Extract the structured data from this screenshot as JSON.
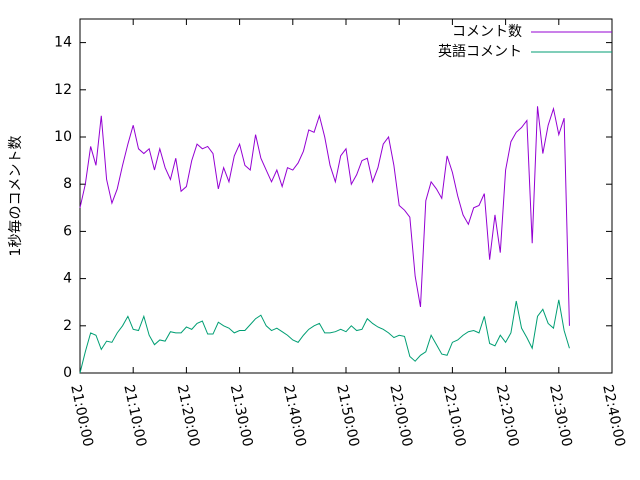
{
  "chart_data": {
    "type": "line",
    "y_label": "1秒毎のコメント数",
    "x": [
      "21:00:00",
      "21:01:00",
      "21:02:00",
      "21:03:00",
      "21:04:00",
      "21:05:00",
      "21:06:00",
      "21:07:00",
      "21:08:00",
      "21:09:00",
      "21:10:00",
      "21:11:00",
      "21:12:00",
      "21:13:00",
      "21:14:00",
      "21:15:00",
      "21:16:00",
      "21:17:00",
      "21:18:00",
      "21:19:00",
      "21:20:00",
      "21:21:00",
      "21:22:00",
      "21:23:00",
      "21:24:00",
      "21:25:00",
      "21:26:00",
      "21:27:00",
      "21:28:00",
      "21:29:00",
      "21:30:00",
      "21:31:00",
      "21:32:00",
      "21:33:00",
      "21:34:00",
      "21:35:00",
      "21:36:00",
      "21:37:00",
      "21:38:00",
      "21:39:00",
      "21:40:00",
      "21:41:00",
      "21:42:00",
      "21:43:00",
      "21:44:00",
      "21:45:00",
      "21:46:00",
      "21:47:00",
      "21:48:00",
      "21:49:00",
      "21:50:00",
      "21:51:00",
      "21:52:00",
      "21:53:00",
      "21:54:00",
      "21:55:00",
      "21:56:00",
      "21:57:00",
      "21:58:00",
      "21:59:00",
      "22:00:00",
      "22:01:00",
      "22:02:00",
      "22:03:00",
      "22:04:00",
      "22:05:00",
      "22:06:00",
      "22:07:00",
      "22:08:00",
      "22:09:00",
      "22:10:00",
      "22:11:00",
      "22:12:00",
      "22:13:00",
      "22:14:00",
      "22:15:00",
      "22:16:00",
      "22:17:00",
      "22:18:00",
      "22:19:00",
      "22:20:00",
      "22:21:00",
      "22:22:00",
      "22:23:00",
      "22:24:00",
      "22:25:00",
      "22:26:00",
      "22:27:00",
      "22:28:00",
      "22:29:00",
      "22:30:00",
      "22:31:00",
      "22:32:00"
    ],
    "series": [
      {
        "name": "コメント数",
        "color": "#9400d3",
        "values": [
          7.0,
          8.0,
          9.6,
          8.8,
          10.9,
          8.2,
          7.2,
          7.8,
          8.8,
          9.7,
          10.5,
          9.5,
          9.3,
          9.5,
          8.6,
          9.5,
          8.7,
          8.2,
          9.1,
          7.7,
          7.9,
          9.0,
          9.7,
          9.5,
          9.6,
          9.3,
          7.8,
          8.7,
          8.1,
          9.2,
          9.7,
          8.8,
          8.6,
          10.1,
          9.1,
          8.6,
          8.1,
          8.6,
          7.9,
          8.7,
          8.6,
          8.9,
          9.4,
          10.3,
          10.2,
          10.9,
          10.0,
          8.8,
          8.1,
          9.2,
          9.5,
          8.0,
          8.4,
          9.0,
          9.1,
          8.1,
          8.7,
          9.7,
          10.0,
          8.8,
          7.1,
          6.9,
          6.6,
          4.1,
          2.8,
          7.3,
          8.1,
          7.8,
          7.4,
          9.2,
          8.5,
          7.5,
          6.7,
          6.3,
          7.0,
          7.1,
          7.6,
          4.8,
          6.7,
          5.1,
          8.6,
          9.8,
          10.2,
          10.4,
          10.7,
          5.5,
          11.3,
          9.3,
          10.5,
          11.2,
          10.1,
          10.8,
          2.0
        ]
      },
      {
        "name": "英語コメント",
        "color": "#009e73",
        "values": [
          0,
          0.9,
          1.7,
          1.6,
          1.0,
          1.35,
          1.3,
          1.7,
          2.0,
          2.4,
          1.85,
          1.8,
          2.4,
          1.6,
          1.2,
          1.4,
          1.35,
          1.75,
          1.7,
          1.7,
          1.95,
          1.85,
          2.1,
          2.2,
          1.65,
          1.65,
          2.15,
          2.0,
          1.9,
          1.7,
          1.8,
          1.8,
          2.05,
          2.3,
          2.45,
          2.0,
          1.8,
          1.9,
          1.75,
          1.6,
          1.4,
          1.3,
          1.6,
          1.85,
          2.0,
          2.1,
          1.7,
          1.7,
          1.75,
          1.85,
          1.75,
          2.0,
          1.8,
          1.85,
          2.3,
          2.1,
          1.95,
          1.85,
          1.7,
          1.5,
          1.6,
          1.55,
          0.7,
          0.5,
          0.75,
          0.9,
          1.6,
          1.2,
          0.8,
          0.75,
          1.3,
          1.4,
          1.6,
          1.75,
          1.8,
          1.7,
          2.4,
          1.25,
          1.15,
          1.6,
          1.3,
          1.7,
          3.05,
          1.9,
          1.5,
          1.05,
          2.4,
          2.7,
          2.1,
          1.9,
          3.1,
          1.8,
          1.05
        ]
      }
    ],
    "xlim": [
      "21:00:00",
      "22:40:00"
    ],
    "xticks": [
      "21:00:00",
      "21:10:00",
      "21:20:00",
      "21:30:00",
      "21:40:00",
      "21:50:00",
      "22:00:00",
      "22:10:00",
      "22:20:00",
      "22:30:00",
      "22:40:00"
    ],
    "ylim": [
      0,
      15
    ],
    "yticks": [
      0,
      2,
      4,
      6,
      8,
      10,
      12,
      14
    ],
    "legend": "top-right"
  }
}
